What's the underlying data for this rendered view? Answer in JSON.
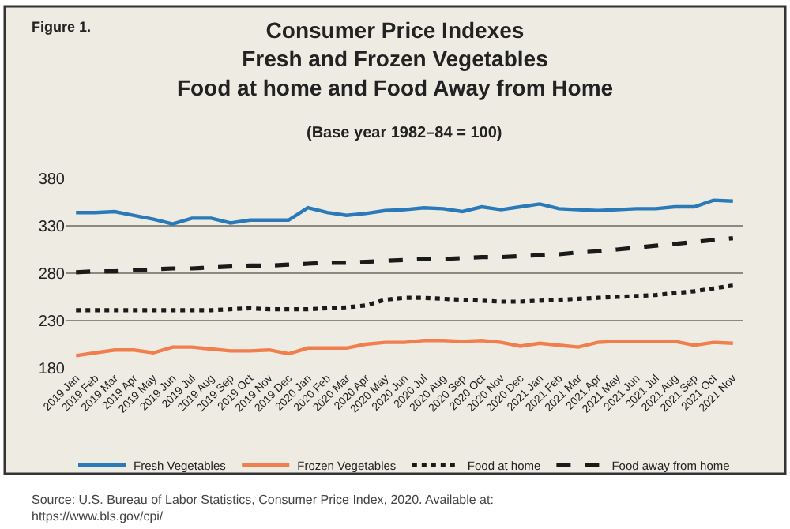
{
  "chart_data": {
    "type": "line",
    "title": "Consumer Price Indexes\nFresh and Frozen Vegetables\nFood at home and Food Away from Home",
    "subtitle": "(Base year 1982–84 = 100)",
    "annotations": [
      "Figure 1.",
      "Source: U.S. Bureau of Labor Statistics, Consumer Price Index, 2020. Available at:\nhttps://www.bls.gov/cpi/"
    ],
    "categories": [
      "2019 Jan",
      "2019 Feb",
      "2019 Mar",
      "2019 Apr",
      "2019 May",
      "2019 Jun",
      "2019 Jul",
      "2019 Aug",
      "2019 Sep",
      "2019 Oct",
      "2019 Nov",
      "2019 Dec",
      "2020 Jan",
      "2020 Feb",
      "2020 Mar",
      "2020 Apr",
      "2020 May",
      "2020 Jun",
      "2020 Jul",
      "2020 Aug",
      "2020 Sep",
      "2020 Oct",
      "2020 Nov",
      "2020 Dec",
      "2021 Jan",
      "2021 Feb",
      "2021 Mar",
      "2021 Apr",
      "2021 May",
      "2021 Jun",
      "2021 Jul",
      "2021 Aug",
      "2021 Sep",
      "2021 Oct",
      "2021 Nov"
    ],
    "series": [
      {
        "name": "Fresh Vegetables",
        "color": "#2a7ab9",
        "line_style": "solid",
        "values": [
          344,
          344,
          345,
          341,
          337,
          332,
          338,
          338,
          333,
          336,
          336,
          336,
          349,
          344,
          341,
          343,
          346,
          347,
          349,
          348,
          345,
          350,
          347,
          350,
          353,
          348,
          347,
          346,
          347,
          348,
          348,
          350,
          350,
          357,
          356
        ]
      },
      {
        "name": "Frozen Vegetables",
        "color": "#f07f4d",
        "line_style": "solid",
        "values": [
          193,
          196,
          199,
          199,
          196,
          202,
          202,
          200,
          198,
          198,
          199,
          195,
          201,
          201,
          201,
          205,
          207,
          207,
          209,
          209,
          208,
          209,
          207,
          203,
          206,
          204,
          202,
          207,
          208,
          208,
          208,
          208,
          204,
          207,
          206
        ]
      },
      {
        "name": "Food at home",
        "color": "#1a1a1a",
        "line_style": "dotted",
        "values": [
          241,
          241,
          241,
          241,
          241,
          241,
          241,
          241,
          242,
          243,
          242,
          242,
          242,
          243,
          244,
          246,
          252,
          254,
          254,
          253,
          252,
          251,
          250,
          250,
          251,
          252,
          253,
          254,
          255,
          256,
          257,
          259,
          261,
          264,
          267
        ]
      },
      {
        "name": "Food away from home",
        "color": "#1a1a1a",
        "line_style": "dashed",
        "values": [
          281,
          282,
          282,
          283,
          284,
          285,
          285,
          286,
          287,
          288,
          288,
          289,
          290,
          291,
          291,
          292,
          293,
          294,
          295,
          295,
          296,
          297,
          297,
          298,
          299,
          300,
          302,
          303,
          305,
          307,
          309,
          311,
          313,
          315,
          317
        ]
      }
    ],
    "ylim": [
      180,
      380
    ],
    "yticks": [
      180,
      230,
      280,
      330,
      380
    ],
    "grid": "y",
    "legend": "bottom"
  }
}
